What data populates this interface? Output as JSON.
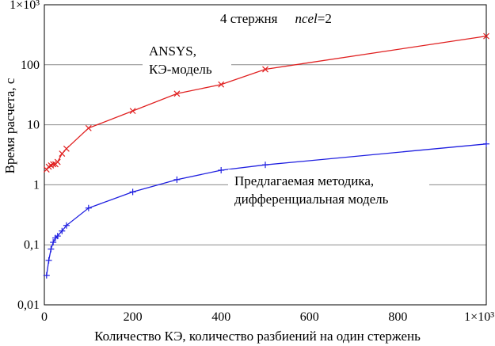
{
  "chart_data": {
    "type": "line",
    "yscale": "log",
    "xlim": [
      0,
      1000
    ],
    "ylim": [
      0.01,
      1000
    ],
    "xlabel": "Количество КЭ, количество разбиений на один стержень",
    "ylabel": "Время расчета, с",
    "x_ticks": [
      "0",
      "200",
      "400",
      "600",
      "800",
      "1×10³"
    ],
    "y_ticks": [
      "0,01",
      "0,1",
      "1",
      "10",
      "100",
      "1×10³"
    ],
    "grid": "horizontal",
    "annotations": {
      "header_text": "4 стержня",
      "header_param_name": "ncel",
      "header_param_value": "=2",
      "ansys_line1": "ANSYS,",
      "ansys_line2": "КЭ-модель",
      "method_line1": "Предлагаемая методика,",
      "method_line2": "дифференциальная модель"
    },
    "series": [
      {
        "color": "#e02020",
        "marker": "x",
        "x": [
          5,
          10,
          15,
          20,
          25,
          30,
          40,
          50,
          100,
          200,
          300,
          400,
          500,
          1000
        ],
        "y": [
          1.8,
          2.0,
          2.1,
          2.2,
          2.2,
          2.4,
          3.3,
          4.0,
          8.8,
          17,
          33,
          47,
          84,
          300
        ]
      },
      {
        "color": "#1f1fe0",
        "marker": "+",
        "x": [
          5,
          10,
          15,
          20,
          25,
          30,
          40,
          50,
          100,
          200,
          300,
          400,
          500,
          1000
        ],
        "y": [
          0.031,
          0.055,
          0.085,
          0.11,
          0.13,
          0.14,
          0.17,
          0.21,
          0.41,
          0.76,
          1.22,
          1.75,
          2.15,
          4.8
        ]
      }
    ]
  }
}
